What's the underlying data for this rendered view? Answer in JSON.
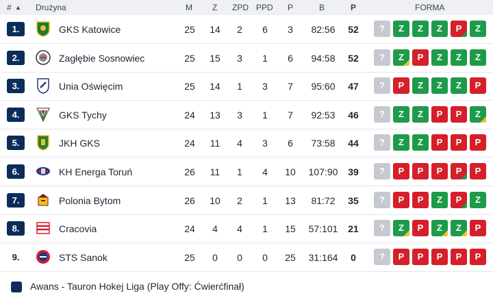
{
  "header": {
    "rank": "#",
    "sort_arrow": "▲",
    "team": "Drużyna",
    "m": "M",
    "z": "Z",
    "zpd": "ZPD",
    "ppd": "PPD",
    "p": "P",
    "b": "B",
    "pts": "P",
    "form": "FORMA"
  },
  "colors": {
    "promo_badge": "#0c2c5a",
    "win": "#1e9b4a",
    "loss": "#d51f2a",
    "next": "#c6c9d0",
    "marker": "#f1c21b"
  },
  "rows": [
    {
      "rank": "1.",
      "team": "GKS Katowice",
      "m": "25",
      "z": "14",
      "zpd": "2",
      "ppd": "6",
      "p": "3",
      "b": "82:56",
      "pts": "52",
      "next": "?",
      "form": [
        "Z",
        "Z",
        "Z",
        "P",
        "Z"
      ],
      "flags": [
        0,
        0,
        0,
        1,
        0
      ],
      "logo": "katowice-logo"
    },
    {
      "rank": "2.",
      "team": "Zagłębie Sosnowiec",
      "m": "25",
      "z": "15",
      "zpd": "3",
      "ppd": "1",
      "p": "6",
      "b": "94:58",
      "pts": "52",
      "next": "?",
      "form": [
        "Z",
        "P",
        "Z",
        "Z",
        "Z"
      ],
      "flags": [
        1,
        0,
        0,
        0,
        0
      ],
      "logo": "zaglebie-logo"
    },
    {
      "rank": "3.",
      "team": "Unia Oświęcim",
      "m": "25",
      "z": "14",
      "zpd": "1",
      "ppd": "3",
      "p": "7",
      "b": "95:60",
      "pts": "47",
      "next": "?",
      "form": [
        "P",
        "Z",
        "Z",
        "Z",
        "P"
      ],
      "flags": [
        0,
        0,
        0,
        0,
        0
      ],
      "logo": "unia-logo"
    },
    {
      "rank": "4.",
      "team": "GKS Tychy",
      "m": "24",
      "z": "13",
      "zpd": "3",
      "ppd": "1",
      "p": "7",
      "b": "92:53",
      "pts": "46",
      "next": "?",
      "form": [
        "Z",
        "Z",
        "P",
        "P",
        "Z"
      ],
      "flags": [
        0,
        0,
        0,
        0,
        1
      ],
      "logo": "tychy-logo"
    },
    {
      "rank": "5.",
      "team": "JKH GKS",
      "m": "24",
      "z": "11",
      "zpd": "4",
      "ppd": "3",
      "p": "6",
      "b": "73:58",
      "pts": "44",
      "next": "?",
      "form": [
        "Z",
        "Z",
        "P",
        "P",
        "P"
      ],
      "flags": [
        0,
        0,
        0,
        0,
        0
      ],
      "logo": "jkh-logo"
    },
    {
      "rank": "6.",
      "team": "KH Energa Toruń",
      "m": "26",
      "z": "11",
      "zpd": "1",
      "ppd": "4",
      "p": "10",
      "b": "107:90",
      "pts": "39",
      "next": "?",
      "form": [
        "P",
        "P",
        "P",
        "P",
        "P"
      ],
      "flags": [
        0,
        0,
        0,
        1,
        0
      ],
      "logo": "torun-logo"
    },
    {
      "rank": "7.",
      "team": "Polonia Bytom",
      "m": "26",
      "z": "10",
      "zpd": "2",
      "ppd": "1",
      "p": "13",
      "b": "81:72",
      "pts": "35",
      "next": "?",
      "form": [
        "P",
        "P",
        "Z",
        "P",
        "Z"
      ],
      "flags": [
        0,
        0,
        0,
        1,
        0
      ],
      "logo": "polonia-logo"
    },
    {
      "rank": "8.",
      "team": "Cracovia",
      "m": "24",
      "z": "4",
      "zpd": "4",
      "ppd": "1",
      "p": "15",
      "b": "57:101",
      "pts": "21",
      "next": "?",
      "form": [
        "Z",
        "P",
        "Z",
        "Z",
        "P"
      ],
      "flags": [
        1,
        0,
        1,
        1,
        0
      ],
      "logo": "cracovia-logo"
    },
    {
      "rank": "9.",
      "team": "STS Sanok",
      "m": "25",
      "z": "0",
      "zpd": "0",
      "ppd": "0",
      "p": "25",
      "b": "31:164",
      "pts": "0",
      "next": "?",
      "form": [
        "P",
        "P",
        "P",
        "P",
        "P"
      ],
      "flags": [
        0,
        0,
        0,
        0,
        0
      ],
      "logo": "sanok-logo"
    }
  ],
  "legend": {
    "text": "Awans - Tauron Hokej Liga (Play Offy: Ćwierćfinał)"
  }
}
